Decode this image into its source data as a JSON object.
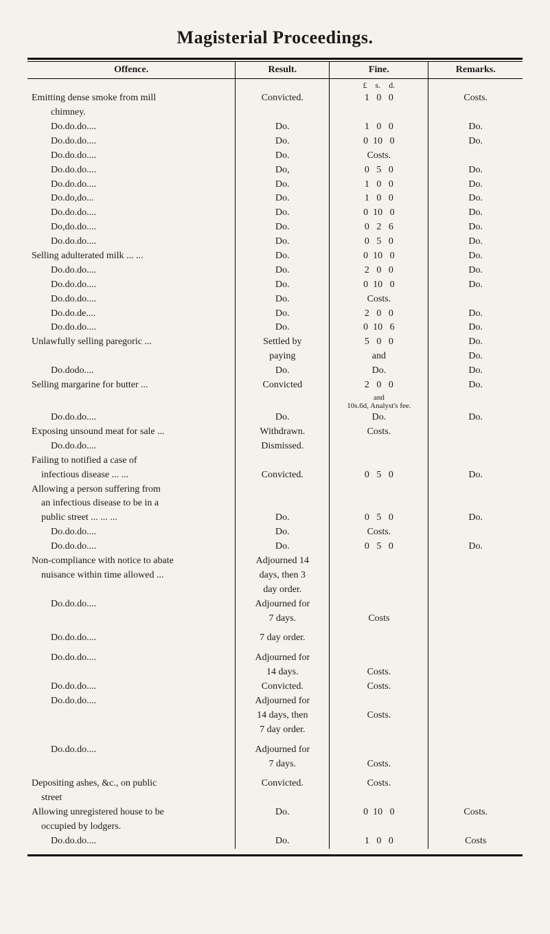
{
  "title": "Magisterial Proceedings.",
  "headers": {
    "offence": "Offence.",
    "result": "Result.",
    "fine": "Fine.",
    "remarks": "Remarks."
  },
  "currency_header": "£    s.    d.",
  "rows": [
    {
      "offence_full": "Emitting dense smoke from mill",
      "result": "Convicted.",
      "fine": "1   0   0",
      "remark": "Costs."
    },
    {
      "offence_indent": "chimney.",
      "result": "",
      "fine": "",
      "remark": ""
    },
    {
      "offence4": [
        "Do.",
        "do.",
        "do.",
        "..."
      ],
      "result": "Do.",
      "fine": "1   0   0",
      "remark": "Do."
    },
    {
      "offence4": [
        "Do.",
        "do.",
        "do.",
        "..."
      ],
      "result": "Do.",
      "fine": "0  10   0",
      "remark": "Do."
    },
    {
      "offence4": [
        "Do.",
        "do.",
        "do.",
        "..."
      ],
      "result": "Do.",
      "fine": "Costs.",
      "remark": ""
    },
    {
      "offence4": [
        "Do.",
        "do.",
        "do.",
        "..."
      ],
      "result": "Do,",
      "fine": "0   5   0",
      "remark": "Do."
    },
    {
      "offence4": [
        "Do.",
        "do.",
        "do.",
        "..."
      ],
      "result": "Do.",
      "fine": "1   0   0",
      "remark": "Do."
    },
    {
      "offence4": [
        "Do.",
        "do,",
        "do",
        "..."
      ],
      "result": "Do.",
      "fine": "1   0   0",
      "remark": "Do."
    },
    {
      "offence4": [
        "Do.",
        "do.",
        "do.",
        "..."
      ],
      "result": "Do.",
      "fine": "0  10   0",
      "remark": "Do."
    },
    {
      "offence4": [
        "Do,",
        "do.",
        "do.",
        "..."
      ],
      "result": "Do.",
      "fine": "0   2   6",
      "remark": "Do."
    },
    {
      "offence4": [
        "Do.",
        "do.",
        "do.",
        "..."
      ],
      "result": "Do.",
      "fine": "0   5   0",
      "remark": "Do."
    },
    {
      "offence_full": "Selling adulterated milk ...     ...",
      "result": "Do.",
      "fine": "0  10   0",
      "remark": "Do."
    },
    {
      "offence4": [
        "Do.",
        "do.",
        "do.",
        "..."
      ],
      "result": "Do.",
      "fine": "2   0   0",
      "remark": "Do."
    },
    {
      "offence4": [
        "Do.",
        "do.",
        "do.",
        "..."
      ],
      "result": "Do.",
      "fine": "0  10   0",
      "remark": "Do."
    },
    {
      "offence4": [
        "Do.",
        "do.",
        "do.",
        "..."
      ],
      "result": "Do.",
      "fine": "Costs.",
      "remark": ""
    },
    {
      "offence4": [
        "Do.",
        "do.",
        "de.",
        "..."
      ],
      "result": "Do.",
      "fine": "2   0   0",
      "remark": "Do."
    },
    {
      "offence4": [
        "Do.",
        "do.",
        "do.",
        "..."
      ],
      "result": "Do.",
      "fine": "0  10   6",
      "remark": "Do."
    },
    {
      "offence_full": "Unlawfully selling paregoric   ...",
      "result": "Settled by",
      "fine": "5   0   0",
      "remark": "Do."
    },
    {
      "offence_full": "",
      "result": "paying",
      "fine": "and",
      "remark": "Do."
    },
    {
      "offence4": [
        "Do.",
        "do",
        "do.",
        "..."
      ],
      "result": "Do.",
      "fine": "Do.",
      "remark": "Do."
    },
    {
      "offence_full": "Selling margarine for butter    ...",
      "result": "Convicted",
      "fine": "2   0   0",
      "remark": "Do."
    },
    {
      "offence_full": "",
      "result": "",
      "fine_small": "and\n10s.6d, Analyst's fee.",
      "remark": ""
    },
    {
      "offence4": [
        "Do.",
        "do.",
        "do.",
        "..."
      ],
      "result": "Do.",
      "fine": "Do.",
      "remark": "Do."
    },
    {
      "offence_full": "Exposing unsound meat for sale ...",
      "result": "Withdrawn.",
      "fine": "Costs.",
      "remark": ""
    },
    {
      "offence4": [
        "Do.",
        "do.",
        "do.",
        "..."
      ],
      "result": "Dismissed.",
      "fine": "",
      "remark": ""
    },
    {
      "offence_full": "Failing to notified a case of",
      "result": "",
      "fine": "",
      "remark": ""
    },
    {
      "offence_indent2": "infectious disease        ...     ...",
      "result": "Convicted.",
      "fine": "0   5   0",
      "remark": "Do."
    },
    {
      "offence_full": "Allowing a person suffering from",
      "result": "",
      "fine": "",
      "remark": ""
    },
    {
      "offence_indent2": "an infectious disease to be in a",
      "result": "",
      "fine": "",
      "remark": ""
    },
    {
      "offence_indent2": "public street     ...      ...      ...",
      "result": "Do.",
      "fine": "0   5   0",
      "remark": "Do."
    },
    {
      "offence4": [
        "Do.",
        "do.",
        "do.",
        "..."
      ],
      "result": "Do.",
      "fine": "Costs.",
      "remark": ""
    },
    {
      "offence4": [
        "Do.",
        "do.",
        "do.",
        "..."
      ],
      "result": "Do.",
      "fine": "0   5   0",
      "remark": "Do."
    },
    {
      "offence_full": "Non-compliance with notice to abate",
      "result": "Adjourned 14",
      "fine": "",
      "remark": ""
    },
    {
      "offence_indent2": "nuisance within time allowed ...",
      "result": "days, then 3",
      "fine": "",
      "remark": ""
    },
    {
      "offence_full": "",
      "result": "day order.",
      "fine": "",
      "remark": ""
    },
    {
      "offence4": [
        "Do.",
        "do.",
        "do.",
        "..."
      ],
      "result": "Adjourned for",
      "fine": "",
      "remark": ""
    },
    {
      "offence_full": "",
      "result": "7 days.",
      "fine": "Costs",
      "remark": ""
    },
    {
      "spacer": true
    },
    {
      "offence4": [
        "Do.",
        "do.",
        "do.",
        "..."
      ],
      "result": "7 day order.",
      "fine": "",
      "remark": ""
    },
    {
      "spacer": true
    },
    {
      "offence4": [
        "Do.",
        "do.",
        "do.",
        "..."
      ],
      "result": "Adjourned for",
      "fine": "",
      "remark": ""
    },
    {
      "offence_full": "",
      "result": "14 days.",
      "fine": "Costs.",
      "remark": ""
    },
    {
      "offence4": [
        "Do.",
        "do.",
        "do.",
        "..."
      ],
      "result": "Convicted.",
      "fine": "Costs.",
      "remark": ""
    },
    {
      "offence4": [
        "Do.",
        "do.",
        "do.",
        "..."
      ],
      "result": "Adjourned for",
      "fine": "",
      "remark": ""
    },
    {
      "offence_full": "",
      "result": "14 days, then",
      "fine": "Costs.",
      "remark": ""
    },
    {
      "offence_full": "",
      "result": "7 day order.",
      "fine": "",
      "remark": ""
    },
    {
      "spacer": true
    },
    {
      "offence4": [
        "Do.",
        "do.",
        "do.",
        "..."
      ],
      "result": "Adjourned for",
      "fine": "",
      "remark": ""
    },
    {
      "offence_full": "",
      "result": "7 days.",
      "fine": "Costs.",
      "remark": ""
    },
    {
      "spacer": true
    },
    {
      "offence_full": "Depositing ashes, &c., on public",
      "result": "Convicted.",
      "fine": "Costs.",
      "remark": ""
    },
    {
      "offence_indent2": "street",
      "result": "",
      "fine": "",
      "remark": ""
    },
    {
      "offence_full": "Allowing unregistered house to be",
      "result": "Do.",
      "fine": "0  10   0",
      "remark": "Costs."
    },
    {
      "offence_indent2": "occupied by lodgers.",
      "result": "",
      "fine": "",
      "remark": ""
    },
    {
      "offence4": [
        "Do.",
        "do.",
        "do.",
        "..."
      ],
      "result": "Do.",
      "fine": "1   0   0",
      "remark": "Costs"
    }
  ],
  "style": {
    "background_color": "#f5f2eb",
    "text_color": "#1a1a1a",
    "font_family": "Times New Roman",
    "title_fontsize": 26,
    "body_fontsize": 14,
    "small_fontsize": 11,
    "rule_color": "#000000",
    "col_widths_pct": [
      42,
      19,
      20,
      19
    ]
  }
}
